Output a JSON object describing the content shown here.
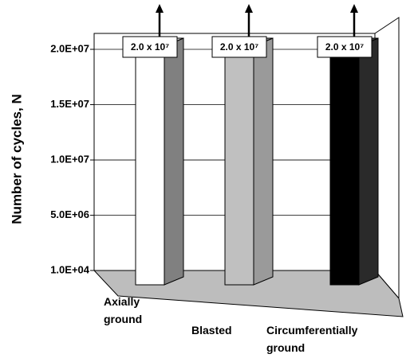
{
  "chart_data": {
    "type": "bar3d",
    "y_label": "Number of cycles, N",
    "categories": [
      "Axially ground",
      "Blasted",
      "Circumferentially ground"
    ],
    "values": [
      20000000,
      20000000,
      20000000
    ],
    "value_labels": [
      "2.0 x 10⁷",
      "2.0 x 10⁷",
      "2.0 x 10⁷"
    ],
    "colors": [
      "#ffffff",
      "#c0c0c0",
      "#000000"
    ],
    "ylim": [
      10000,
      20000000
    ],
    "yticks": [
      {
        "value": 10000,
        "label": "1.0E+04"
      },
      {
        "value": 5000000,
        "label": "5.0E+06"
      },
      {
        "value": 10000000,
        "label": "1.0E+07"
      },
      {
        "value": 15000000,
        "label": "1.5E+07"
      },
      {
        "value": 20000000,
        "label": "2.0E+07"
      }
    ],
    "grid": true
  }
}
